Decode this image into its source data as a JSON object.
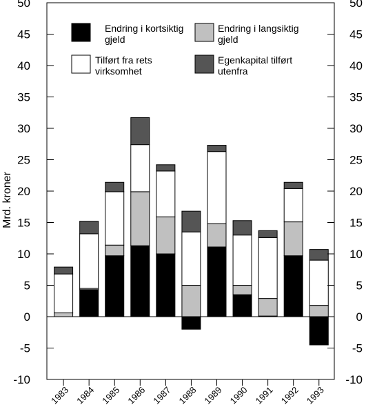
{
  "chart_data": {
    "type": "bar",
    "stacked": true,
    "ylabel": "Mrd. kroner",
    "ylim": [
      -10,
      50
    ],
    "yticks": [
      50,
      45,
      40,
      35,
      30,
      25,
      20,
      15,
      10,
      5,
      0,
      -5,
      -10
    ],
    "ytick_labels": [
      "50",
      "45",
      "40",
      "35",
      "30",
      "25",
      "20",
      "15",
      "10",
      "5",
      "0",
      "-5",
      "-10"
    ],
    "categories": [
      "1983",
      "1984",
      "1985",
      "1986",
      "1987",
      "1988",
      "1989",
      "1990",
      "1991",
      "1992",
      "1993"
    ],
    "series": [
      {
        "name": "Endring i kortsiktig gjeld",
        "color": "#000000",
        "values": [
          0,
          4.3,
          9.7,
          11.3,
          10.0,
          -2.0,
          11.1,
          3.5,
          0.1,
          9.7,
          -4.5
        ]
      },
      {
        "name": "Endring i langsiktig gjeld",
        "color": "#c0c0c0",
        "values": [
          0.6,
          0.2,
          1.7,
          8.6,
          5.9,
          5.0,
          3.7,
          1.5,
          2.8,
          5.4,
          1.8
        ]
      },
      {
        "name": "Tilført fra rets virksomhet",
        "color": "#ffffff",
        "values": [
          6.2,
          8.7,
          8.5,
          7.5,
          7.3,
          8.5,
          11.5,
          8.0,
          9.7,
          5.3,
          7.2
        ]
      },
      {
        "name": "Egenkapital tilført utenfra",
        "color": "#555555",
        "values": [
          1.1,
          2.0,
          1.5,
          4.3,
          1.0,
          3.3,
          1.0,
          2.3,
          1.1,
          1.0,
          1.7
        ]
      }
    ],
    "legend": {
      "position": "top",
      "items": [
        {
          "line1": "Endring i kortsiktig",
          "line2": "gjeld"
        },
        {
          "line1": "Endring i langsiktig",
          "line2": "gjeld"
        },
        {
          "line1": "Tilført fra rets",
          "line2": "virksomhet"
        },
        {
          "line1": "Egenkapital tilført",
          "line2": "utenfra"
        }
      ]
    },
    "grid": false
  }
}
